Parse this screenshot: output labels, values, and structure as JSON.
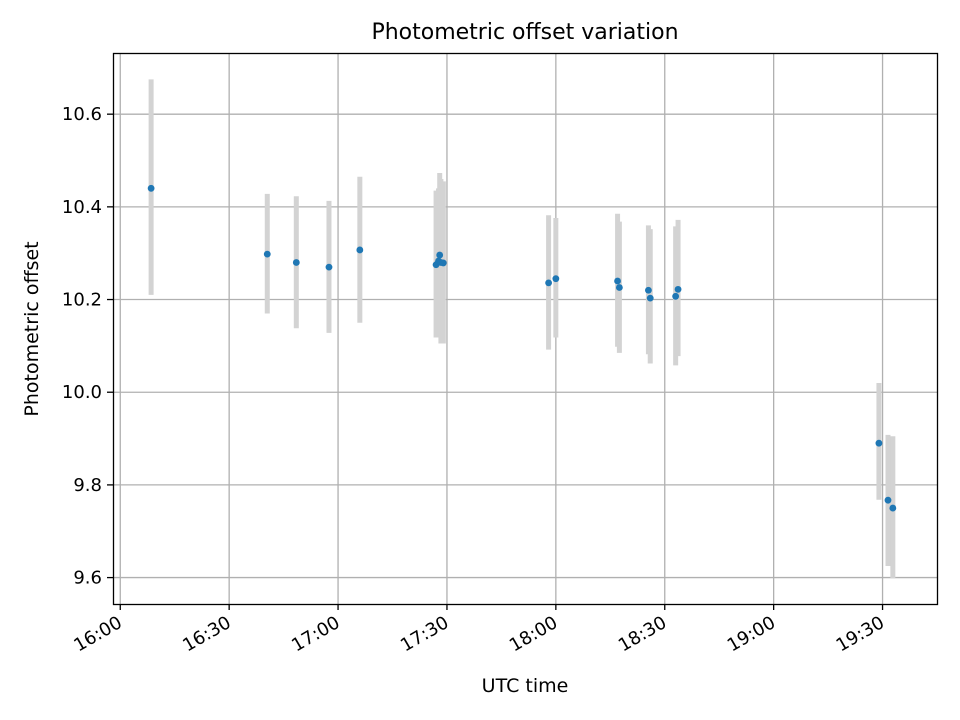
{
  "chart_data": {
    "type": "scatter",
    "title": "Photometric offset variation",
    "xlabel": "UTC time",
    "ylabel": "Photometric offset",
    "xlim": [
      "15:58",
      "19:45"
    ],
    "ylim": [
      9.543,
      10.732
    ],
    "grid": true,
    "x_ticks": [
      "16:00",
      "16:30",
      "17:00",
      "17:30",
      "18:00",
      "18:30",
      "19:00",
      "19:30"
    ],
    "y_ticks": [
      9.6,
      9.8,
      10.0,
      10.2,
      10.4,
      10.6
    ],
    "y_tick_labels": [
      "9.6",
      "9.8",
      "10.0",
      "10.2",
      "10.4",
      "10.6"
    ],
    "point_color": "#1f77b4",
    "errorbar_color": "#d3d3d3",
    "points": [
      {
        "x": "16:08:30",
        "y": 10.44,
        "low": 10.21,
        "high": 10.675
      },
      {
        "x": "16:40:30",
        "y": 10.298,
        "low": 10.17,
        "high": 10.428
      },
      {
        "x": "16:48:30",
        "y": 10.28,
        "low": 10.138,
        "high": 10.423
      },
      {
        "x": "16:57:30",
        "y": 10.27,
        "low": 10.128,
        "high": 10.413
      },
      {
        "x": "17:06:00",
        "y": 10.307,
        "low": 10.15,
        "high": 10.465
      },
      {
        "x": "17:27:00",
        "y": 10.275,
        "low": 10.118,
        "high": 10.435
      },
      {
        "x": "17:27:40",
        "y": 10.283,
        "low": 10.125,
        "high": 10.44
      },
      {
        "x": "17:28:00",
        "y": 10.296,
        "low": 10.13,
        "high": 10.473
      },
      {
        "x": "17:28:20",
        "y": 10.28,
        "low": 10.105,
        "high": 10.46
      },
      {
        "x": "17:29:00",
        "y": 10.279,
        "low": 10.105,
        "high": 10.455
      },
      {
        "x": "17:58:00",
        "y": 10.236,
        "low": 10.092,
        "high": 10.382
      },
      {
        "x": "18:00:00",
        "y": 10.245,
        "low": 10.118,
        "high": 10.376
      },
      {
        "x": "18:17:00",
        "y": 10.24,
        "low": 10.098,
        "high": 10.385
      },
      {
        "x": "18:17:30",
        "y": 10.226,
        "low": 10.085,
        "high": 10.368
      },
      {
        "x": "18:25:30",
        "y": 10.22,
        "low": 10.082,
        "high": 10.36
      },
      {
        "x": "18:26:00",
        "y": 10.203,
        "low": 10.062,
        "high": 10.352
      },
      {
        "x": "18:33:00",
        "y": 10.207,
        "low": 10.058,
        "high": 10.358
      },
      {
        "x": "18:33:40",
        "y": 10.222,
        "low": 10.078,
        "high": 10.372
      },
      {
        "x": "19:29:00",
        "y": 9.89,
        "low": 9.768,
        "high": 10.02
      },
      {
        "x": "19:31:30",
        "y": 9.767,
        "low": 9.625,
        "high": 9.908
      },
      {
        "x": "19:32:50",
        "y": 9.75,
        "low": 9.598,
        "high": 9.905
      }
    ]
  }
}
